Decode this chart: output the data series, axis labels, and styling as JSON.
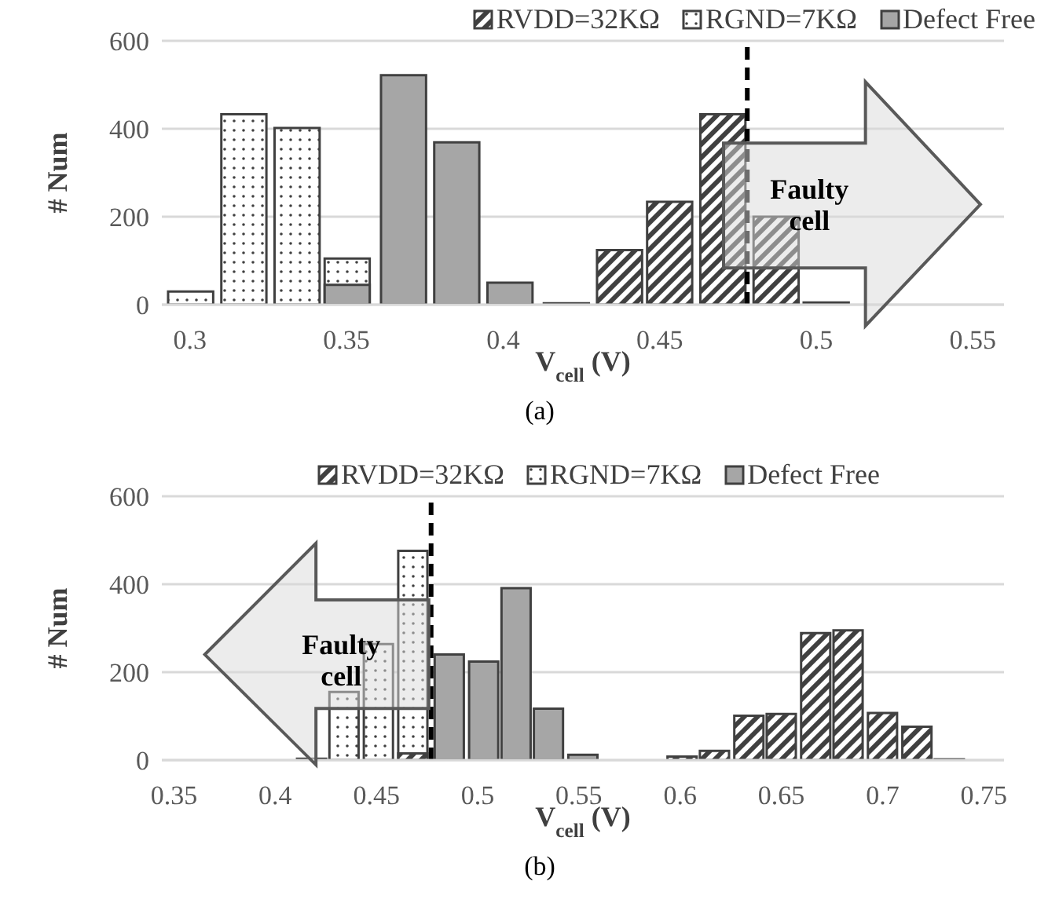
{
  "chart_data": [
    {
      "type": "bar",
      "xlabel": "V$_{cell}$ (V)",
      "ylabel": "# Num",
      "xlim": [
        0.291,
        0.56
      ],
      "xticks": [
        0.3,
        0.35,
        0.4,
        0.45,
        0.5,
        0.55
      ],
      "ylim": [
        0,
        600
      ],
      "yticks": [
        0,
        200,
        400,
        600
      ],
      "grid": "y",
      "legend": "top right",
      "series": [
        {
          "name": "RVDD=32KΩ",
          "color": "#404040",
          "x": [
            0.42,
            0.437,
            0.453,
            0.47,
            0.487,
            0.503
          ],
          "values": [
            3,
            124,
            234,
            433,
            200,
            5
          ]
        },
        {
          "name": "RGND=7KΩ",
          "color": "#404040",
          "x": [
            0.3,
            0.317,
            0.334,
            0.35
          ],
          "values": [
            30,
            433,
            402,
            105
          ]
        },
        {
          "name": "Defect Free",
          "color": "#a6a6a6",
          "x": [
            0.35,
            0.368,
            0.385,
            0.402
          ],
          "values": [
            45,
            522,
            369,
            50
          ]
        }
      ],
      "ref_lines": [
        {
          "axis": "x",
          "value": 0.478,
          "color": "#000000",
          "line_style": "dashed"
        }
      ],
      "annotations": [
        "Faulty cell",
        "(a)"
      ]
    },
    {
      "type": "bar",
      "xlabel": "V$_{cell}$ (V)",
      "ylabel": "# Num",
      "xlim": [
        0.344,
        0.76
      ],
      "xticks": [
        0.35,
        0.4,
        0.45,
        0.5,
        0.55,
        0.6,
        0.65,
        0.7,
        0.75
      ],
      "ylim": [
        0,
        600
      ],
      "yticks": [
        0,
        200,
        400,
        600
      ],
      "grid": "y",
      "legend": "top",
      "series": [
        {
          "name": "RVDD=32KΩ",
          "color": "#404040",
          "x": [
            0.468,
            0.601,
            0.617,
            0.634,
            0.65,
            0.667,
            0.683,
            0.7,
            0.717,
            0.733
          ],
          "values": [
            15,
            8,
            21,
            101,
            105,
            289,
            295,
            107,
            76,
            2
          ]
        },
        {
          "name": "RGND=7KΩ",
          "color": "#404040",
          "x": [
            0.418,
            0.434,
            0.451,
            0.468
          ],
          "values": [
            3,
            155,
            264,
            476
          ]
        },
        {
          "name": "Defect Free",
          "color": "#a6a6a6",
          "x": [
            0.486,
            0.503,
            0.519,
            0.535,
            0.552
          ],
          "values": [
            240,
            224,
            391,
            117,
            12
          ]
        }
      ],
      "ref_lines": [
        {
          "axis": "x",
          "value": 0.477,
          "color": "#000000",
          "line_style": "dashed"
        }
      ],
      "annotations": [
        "Faulty cell",
        "(b)"
      ]
    }
  ]
}
